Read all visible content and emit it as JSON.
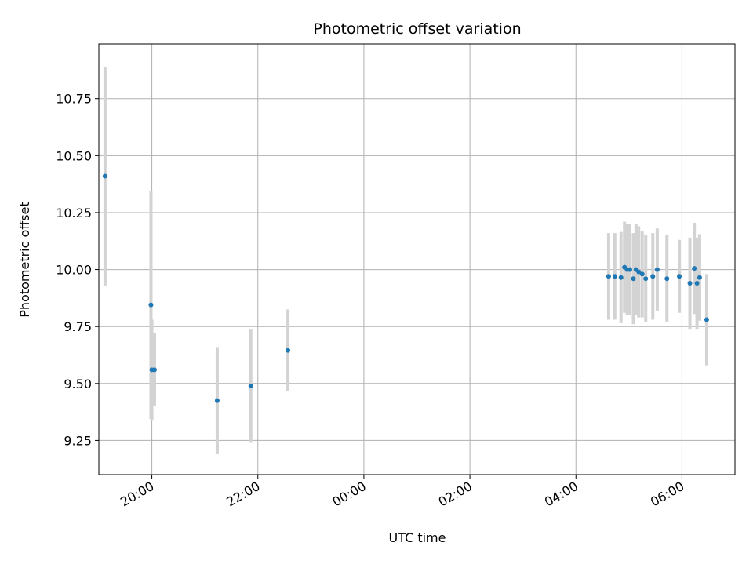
{
  "chart_data": {
    "type": "scatter",
    "title": "Photometric offset variation",
    "xlabel": "UTC time",
    "ylabel": "Photometric offset",
    "x_axis_type": "datetime",
    "xlim": [
      "19:00",
      "07:00"
    ],
    "ylim": [
      9.1,
      10.99
    ],
    "xticks": [
      "20:00",
      "22:00",
      "00:00",
      "02:00",
      "04:00",
      "06:00"
    ],
    "yticks": [
      9.25,
      9.5,
      9.75,
      10.0,
      10.25,
      10.5,
      10.75
    ],
    "yticklabels": [
      "9.25",
      "9.50",
      "9.75",
      "10.00",
      "10.25",
      "10.50",
      "10.75"
    ],
    "grid": true,
    "point_color": "#1f77b4",
    "errorbar_color": "#d3d3d3",
    "series": [
      {
        "x": [
          "19:07",
          "19:59",
          "20:00",
          "20:03",
          "21:14",
          "21:52",
          "22:34",
          "04:37",
          "04:44",
          "04:51",
          "04:55",
          "04:58",
          "05:01",
          "05:05",
          "05:08",
          "05:11",
          "05:15",
          "05:19",
          "05:27",
          "05:32",
          "05:43",
          "05:57",
          "06:09",
          "06:14",
          "06:17",
          "06:20",
          "06:28"
        ],
        "y": [
          10.41,
          9.845,
          9.56,
          9.56,
          9.425,
          9.49,
          9.645,
          9.97,
          9.97,
          9.965,
          10.01,
          10.0,
          10.0,
          9.96,
          10.0,
          9.99,
          9.98,
          9.96,
          9.97,
          10.0,
          9.96,
          9.97,
          9.94,
          10.005,
          9.94,
          9.965,
          9.78
        ],
        "yerr": [
          0.48,
          0.5,
          0.22,
          0.16,
          0.235,
          0.25,
          0.18,
          0.19,
          0.19,
          0.2,
          0.2,
          0.2,
          0.2,
          0.2,
          0.2,
          0.2,
          0.19,
          0.19,
          0.19,
          0.18,
          0.19,
          0.16,
          0.2,
          0.2,
          0.2,
          0.19,
          0.2
        ]
      }
    ]
  }
}
